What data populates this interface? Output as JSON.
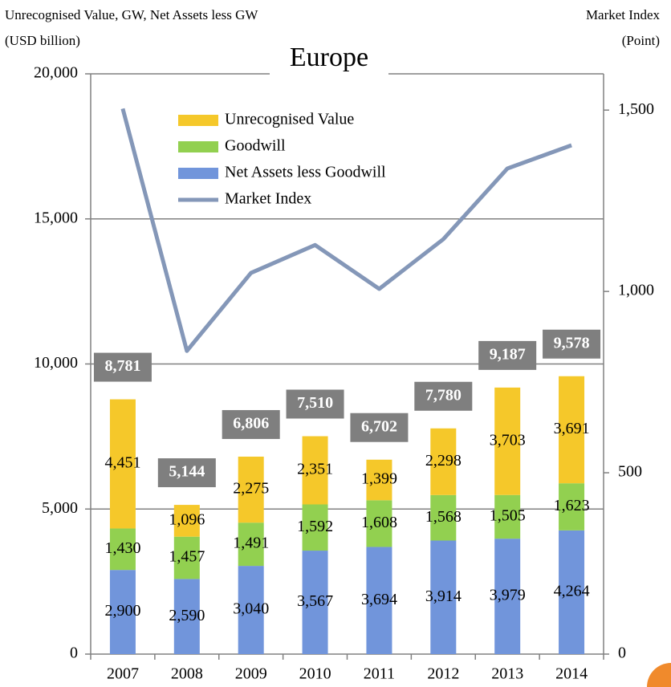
{
  "chart_data": {
    "type": "bar-line",
    "title": "Europe",
    "ylabel": "Unrecognised Value, GW, Net Assets less GW",
    "ylabel_unit": "(USD billion)",
    "y2label": "Market Index",
    "y2label_unit": "(Point)",
    "categories": [
      "2007",
      "2008",
      "2009",
      "2010",
      "2011",
      "2012",
      "2013",
      "2014"
    ],
    "series": [
      {
        "name": "Net Assets less Goodwill",
        "type": "bar",
        "color": "#7195db",
        "values": [
          2900,
          2590,
          3040,
          3567,
          3694,
          3914,
          3979,
          4264
        ],
        "value_labels": [
          "2,900",
          "2,590",
          "3,040",
          "3,567",
          "3,694",
          "3,914",
          "3,979",
          "4,264"
        ]
      },
      {
        "name": "Goodwill",
        "type": "bar",
        "color": "#92d050",
        "values": [
          1430,
          1457,
          1491,
          1592,
          1608,
          1568,
          1505,
          1623
        ],
        "value_labels": [
          "1,430",
          "1,457",
          "1,491",
          "1,592",
          "1,608",
          "1,568",
          "1,505",
          "1,623"
        ]
      },
      {
        "name": "Unrecognised Value",
        "type": "bar",
        "color": "#f5c82a",
        "values": [
          4451,
          1096,
          2275,
          2351,
          1399,
          2298,
          3703,
          3691
        ],
        "value_labels": [
          "4,451",
          "1,096",
          "2,275",
          "2,351",
          "1,399",
          "2,298",
          "3,703",
          "3,691"
        ]
      },
      {
        "name": "Market Index",
        "type": "line",
        "axis": "y2",
        "color": "#8497b8",
        "values": [
          1504,
          836,
          1051,
          1128,
          1007,
          1144,
          1339,
          1403
        ]
      }
    ],
    "totals": {
      "values": [
        8781,
        5144,
        6806,
        7510,
        6702,
        7780,
        9187,
        9578
      ],
      "value_labels": [
        "8,781",
        "5,144",
        "6,806",
        "7,510",
        "6,702",
        "7,780",
        "9,187",
        "9,578"
      ]
    },
    "ylim": [
      0,
      20000
    ],
    "yticks": [
      0,
      {
        "value": 5000,
        "label": "5,000"
      },
      {
        "value": 10000,
        "label": "10,000"
      },
      {
        "value": 15000,
        "label": "15,000"
      },
      {
        "value": 20000,
        "label": "20,000"
      }
    ],
    "y2lim": [
      0,
      1600
    ],
    "y2ticks": [
      0,
      500,
      {
        "value": 1000,
        "label": "1,000"
      },
      {
        "value": 1500,
        "label": "1,500"
      }
    ],
    "grid": true
  }
}
